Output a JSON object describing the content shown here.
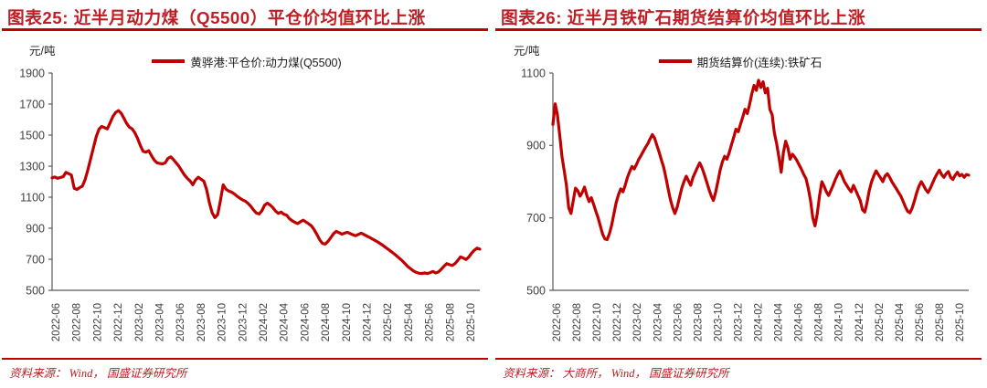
{
  "accent": "#C00000",
  "title_red": "#BE1E24",
  "axis_text_color": "#404040",
  "chart_data": [
    {
      "type": "line",
      "figure_label": "图表25",
      "title": "图表25:  近半月动力煤（Q5500）平仓价均值环比上涨",
      "unit": "元/吨",
      "legend": "黄骅港:平仓价:动力煤(Q5500)",
      "source": "资料来源： Wind， 国盛证券研究所",
      "xlabel": "",
      "ylabel": "元/吨",
      "ylim": [
        500,
        1900
      ],
      "yticks": [
        1900,
        1700,
        1500,
        1300,
        1100,
        900,
        700,
        500
      ],
      "grid": false,
      "legend_position": "top-center",
      "x_tick_labels": [
        "2022-06",
        "2022-08",
        "2022-10",
        "2022-12",
        "2023-02",
        "2023-04",
        "2023-06",
        "2023-08",
        "2023-10",
        "2023-12",
        "2024-02",
        "2024-04",
        "2024-06",
        "2024-08",
        "2024-10",
        "2024-12",
        "2025-02",
        "2025-04",
        "2025-06",
        "2025-08",
        "2025-10"
      ],
      "series": [
        {
          "name": "黄骅港:平仓价:动力煤(Q5500)",
          "color": "#C00000",
          "values": [
            1225,
            1230,
            1222,
            1227,
            1232,
            1260,
            1252,
            1243,
            1157,
            1150,
            1162,
            1172,
            1215,
            1280,
            1350,
            1420,
            1490,
            1538,
            1556,
            1548,
            1540,
            1578,
            1618,
            1645,
            1658,
            1642,
            1610,
            1576,
            1552,
            1540,
            1515,
            1478,
            1432,
            1396,
            1390,
            1400,
            1368,
            1340,
            1322,
            1317,
            1315,
            1322,
            1350,
            1360,
            1342,
            1320,
            1298,
            1270,
            1243,
            1222,
            1205,
            1180,
            1212,
            1228,
            1216,
            1203,
            1148,
            1065,
            1000,
            968,
            988,
            1078,
            1180,
            1152,
            1140,
            1133,
            1122,
            1107,
            1094,
            1083,
            1075,
            1060,
            1042,
            1018,
            998,
            992,
            1012,
            1048,
            1062,
            1050,
            1033,
            1010,
            996,
            1004,
            990,
            985,
            962,
            948,
            938,
            930,
            942,
            952,
            940,
            928,
            915,
            890,
            858,
            825,
            802,
            798,
            815,
            840,
            865,
            880,
            872,
            862,
            868,
            874,
            866,
            858,
            852,
            860,
            868,
            860,
            850,
            842,
            832,
            822,
            812,
            800,
            788,
            775,
            762,
            748,
            735,
            720,
            705,
            688,
            670,
            652,
            638,
            625,
            615,
            610,
            608,
            612,
            608,
            614,
            622,
            612,
            618,
            635,
            655,
            672,
            665,
            660,
            672,
            692,
            715,
            708,
            698,
            714,
            738,
            758,
            772,
            765
          ]
        }
      ]
    },
    {
      "type": "line",
      "figure_label": "图表26",
      "title": "图表26:  近半月铁矿石期货结算价均值环比上涨",
      "unit": "元/吨",
      "legend": "期货结算价(连续):铁矿石",
      "source": "资料来源： 大商所， Wind， 国盛证券研究所",
      "xlabel": "",
      "ylabel": "元/吨",
      "ylim": [
        500,
        1100
      ],
      "yticks": [
        1100,
        900,
        700,
        500
      ],
      "grid": false,
      "legend_position": "top-center",
      "x_tick_labels": [
        "2022-06",
        "2022-08",
        "2022-10",
        "2022-12",
        "2023-02",
        "2023-04",
        "2023-06",
        "2023-08",
        "2023-10",
        "2023-12",
        "2024-02",
        "2024-04",
        "2024-06",
        "2024-08",
        "2024-10",
        "2024-12",
        "2025-02",
        "2025-04",
        "2025-06",
        "2025-08",
        "2025-10"
      ],
      "series": [
        {
          "name": "期货结算价(连续):铁矿石",
          "color": "#C00000",
          "values": [
            958,
            1015,
            985,
            930,
            870,
            830,
            790,
            728,
            712,
            748,
            782,
            775,
            760,
            770,
            785,
            762,
            745,
            756,
            738,
            718,
            700,
            678,
            655,
            642,
            640,
            656,
            680,
            712,
            742,
            764,
            780,
            772,
            790,
            812,
            828,
            842,
            835,
            848,
            862,
            872,
            884,
            895,
            905,
            918,
            930,
            920,
            900,
            882,
            860,
            840,
            812,
            780,
            750,
            728,
            712,
            730,
            756,
            782,
            800,
            815,
            802,
            790,
            812,
            826,
            840,
            852,
            838,
            820,
            800,
            780,
            762,
            748,
            770,
            800,
            832,
            855,
            870,
            862,
            880,
            902,
            922,
            945,
            938,
            958,
            978,
            1000,
            988,
            1012,
            1042,
            1066,
            1052,
            1080,
            1060,
            1076,
            1045,
            1058,
            1000,
            985,
            935,
            905,
            868,
            826,
            880,
            912,
            893,
            862,
            876,
            868,
            858,
            846,
            834,
            820,
            808,
            782,
            748,
            700,
            678,
            712,
            762,
            800,
            788,
            772,
            762,
            776,
            790,
            806,
            820,
            830,
            815,
            800,
            790,
            780,
            772,
            790,
            776,
            762,
            748,
            722,
            716,
            742,
            776,
            800,
            816,
            830,
            820,
            810,
            800,
            816,
            822,
            812,
            800,
            790,
            780,
            770,
            760,
            745,
            730,
            718,
            714,
            728,
            748,
            770,
            788,
            800,
            790,
            778,
            770,
            782,
            796,
            810,
            822,
            832,
            820,
            812,
            822,
            828,
            812,
            806,
            818,
            826,
            816,
            820,
            812,
            820,
            818
          ]
        }
      ]
    }
  ]
}
